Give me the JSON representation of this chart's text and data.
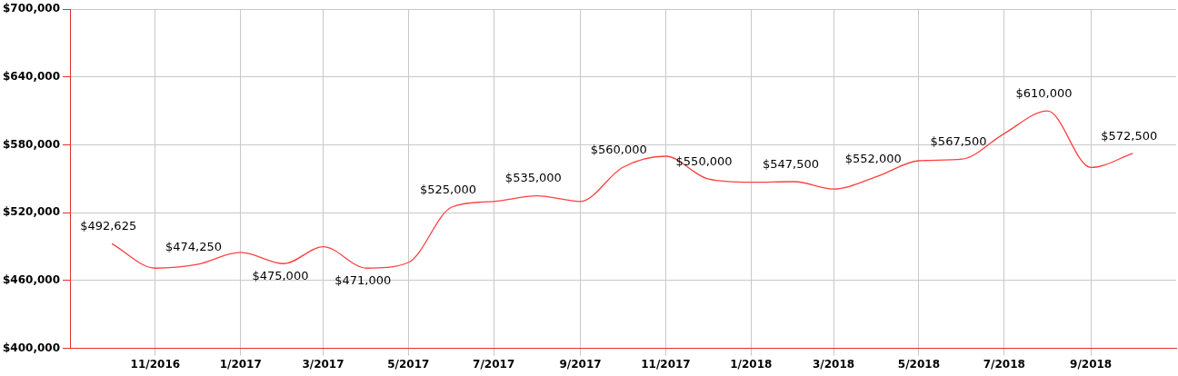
{
  "chart_data": {
    "type": "line",
    "x": [
      "2016-10",
      "2016-11",
      "2016-12",
      "2017-01",
      "2017-02",
      "2017-03",
      "2017-04",
      "2017-05",
      "2017-06",
      "2017-07",
      "2017-08",
      "2017-09",
      "2017-10",
      "2017-11",
      "2017-12",
      "2018-01",
      "2018-02",
      "2018-03",
      "2018-04",
      "2018-05",
      "2018-06",
      "2018-07",
      "2018-08",
      "2018-09",
      "2018-10"
    ],
    "series": [
      {
        "color": "#ff4040",
        "values": [
          492625,
          471000,
          474250,
          485000,
          475000,
          490000,
          471000,
          476000,
          525000,
          530000,
          535000,
          530000,
          560000,
          570000,
          550000,
          547000,
          547500,
          541000,
          552000,
          566000,
          567500,
          590000,
          610000,
          560000,
          572500
        ],
        "value_labels": [
          "$492,625",
          null,
          "$474,250",
          null,
          "$475,000",
          null,
          "$471,000",
          null,
          "$525,000",
          null,
          "$535,000",
          null,
          "$560,000",
          null,
          "$550,000",
          null,
          "$547,500",
          null,
          "$552,000",
          null,
          "$567,500",
          null,
          "$610,000",
          null,
          "$572,500"
        ]
      }
    ],
    "xlim": [
      "2016-09",
      "2018-11"
    ],
    "xticks": [
      {
        "value": "2016-11",
        "label": "11/2016"
      },
      {
        "value": "2017-01",
        "label": "1/2017"
      },
      {
        "value": "2017-03",
        "label": "3/2017"
      },
      {
        "value": "2017-05",
        "label": "5/2017"
      },
      {
        "value": "2017-07",
        "label": "7/2017"
      },
      {
        "value": "2017-09",
        "label": "9/2017"
      },
      {
        "value": "2017-11",
        "label": "11/2017"
      },
      {
        "value": "2018-01",
        "label": "1/2018"
      },
      {
        "value": "2018-03",
        "label": "3/2018"
      },
      {
        "value": "2018-05",
        "label": "5/2018"
      },
      {
        "value": "2018-07",
        "label": "7/2018"
      },
      {
        "value": "2018-09",
        "label": "9/2018"
      }
    ],
    "ylim": [
      400000,
      700000
    ],
    "yticks": [
      {
        "value": 400000,
        "label": "$400,000"
      },
      {
        "value": 460000,
        "label": "$460,000"
      },
      {
        "value": 520000,
        "label": "$520,000"
      },
      {
        "value": 580000,
        "label": "$580,000"
      },
      {
        "value": 640000,
        "label": "$640,000"
      },
      {
        "value": 700000,
        "label": "$700,000"
      }
    ],
    "grid": true,
    "marker": "none",
    "line_style": "solid"
  }
}
